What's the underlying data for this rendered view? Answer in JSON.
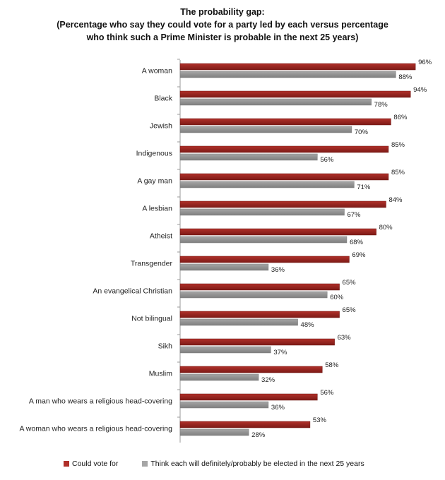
{
  "chart_data": {
    "type": "bar",
    "orientation": "horizontal",
    "title": "The probability gap:",
    "subtitle_line1": "(Percentage who say they could vote for a party led by each versus percentage",
    "subtitle_line2": "who think such a Prime Minister is probable in the next 25 years)",
    "categories": [
      "A woman",
      "Black",
      "Jewish",
      "Indigenous",
      "A gay man",
      "A lesbian",
      "Atheist",
      "Transgender",
      "An evangelical Christian",
      "Not bilingual",
      "Sikh",
      "Muslim",
      "A man who wears a religious head-covering",
      "A woman who wears a religious head-covering"
    ],
    "series": [
      {
        "name": "Could vote for",
        "color": "#b0302a",
        "values": [
          96,
          94,
          86,
          85,
          85,
          84,
          80,
          69,
          65,
          65,
          63,
          58,
          56,
          53
        ]
      },
      {
        "name": "Think each will definitely/probably be elected in the next 25 years",
        "color": "#a6a6a6",
        "values": [
          88,
          78,
          70,
          56,
          71,
          67,
          68,
          36,
          60,
          48,
          37,
          32,
          36,
          28
        ]
      }
    ],
    "xlim": [
      0,
      100
    ],
    "value_suffix": "%",
    "legend_position": "bottom"
  }
}
